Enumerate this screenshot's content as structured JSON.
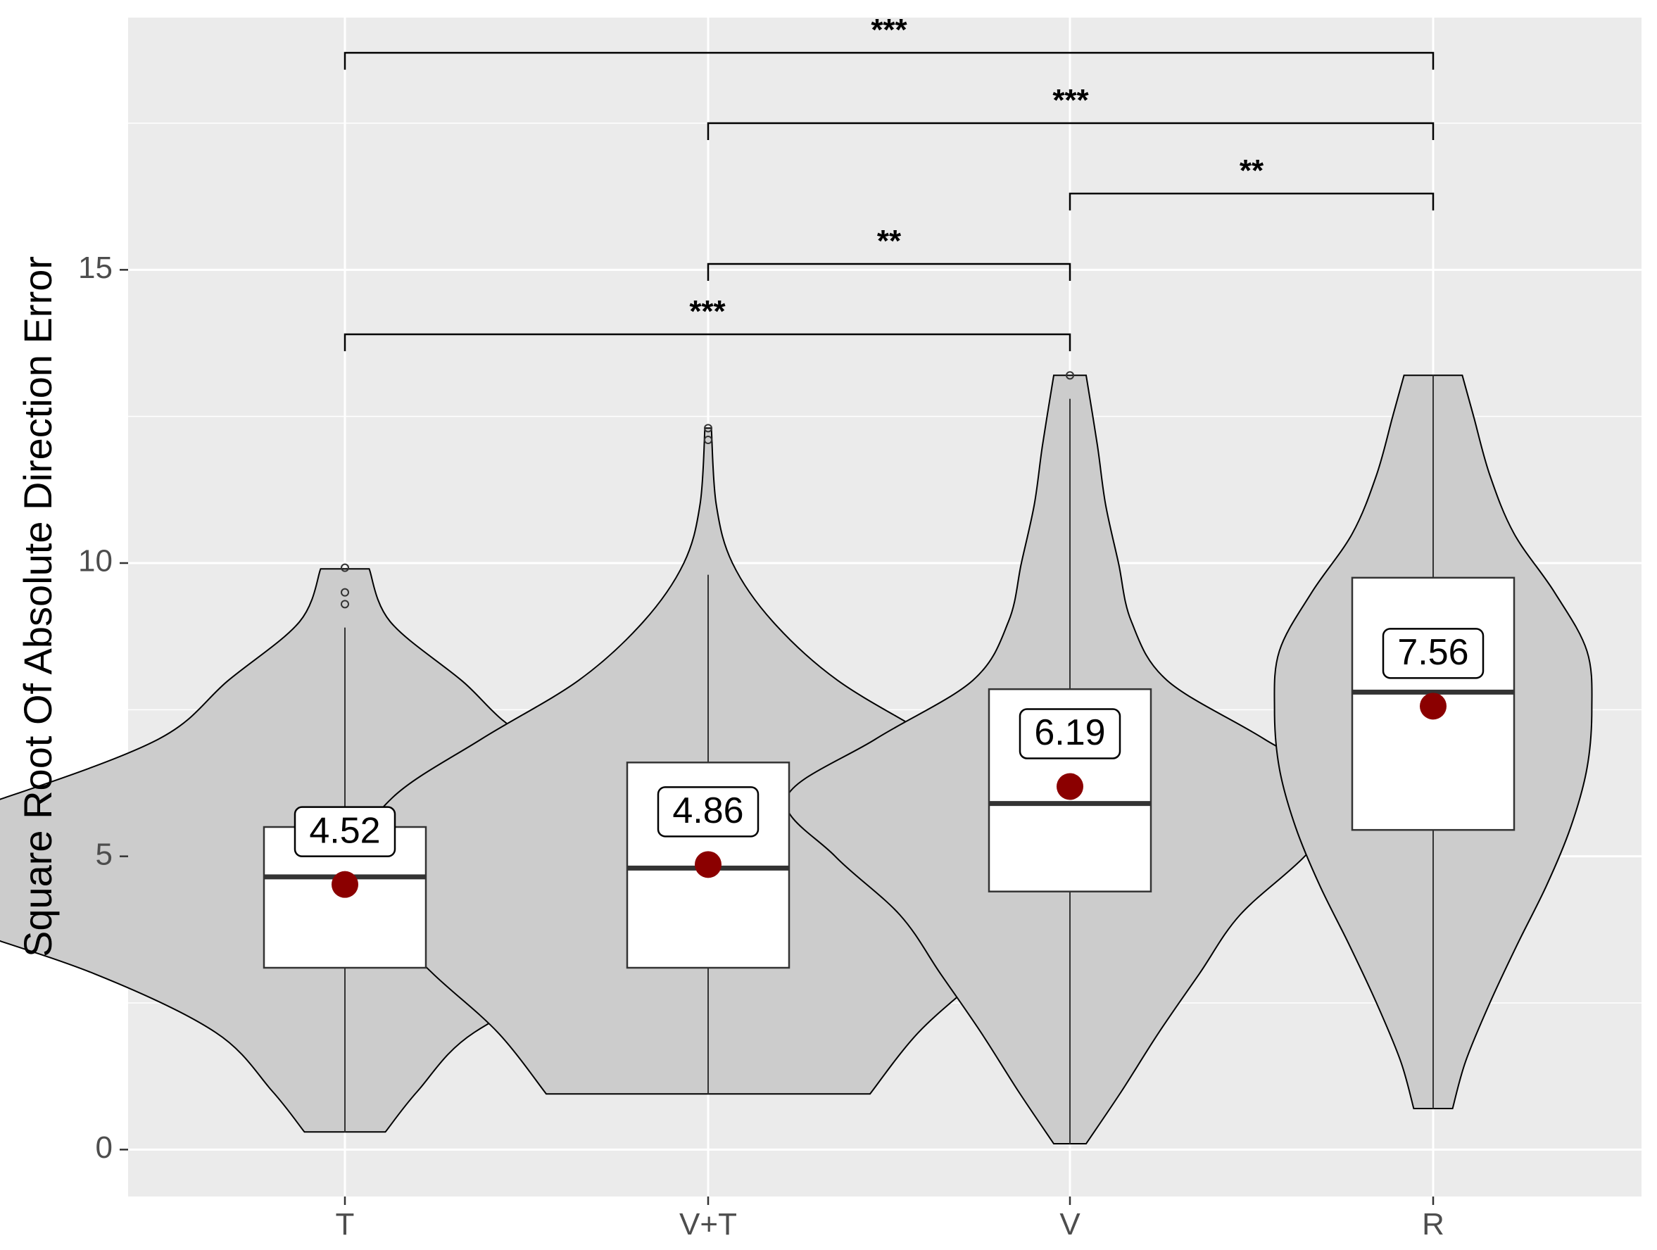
{
  "chart_data": {
    "type": "violin",
    "title": "",
    "xlabel": "",
    "ylabel": "Square Root Of Absolute Direction Error",
    "ylim": [
      -0.8,
      19.3
    ],
    "yticks": [
      0,
      5,
      10,
      15
    ],
    "grid": true,
    "legend": "none",
    "categories": [
      "T",
      "V+T",
      "V",
      "R"
    ],
    "groups": [
      {
        "category": "T",
        "violin": [
          [
            0.3,
            0.25
          ],
          [
            1.0,
            0.45
          ],
          [
            2.0,
            0.8
          ],
          [
            3.0,
            1.55
          ],
          [
            4.0,
            2.6
          ],
          [
            4.85,
            3.3
          ],
          [
            5.5,
            2.75
          ],
          [
            6.0,
            2.1
          ],
          [
            7.0,
            1.15
          ],
          [
            8.0,
            0.72
          ],
          [
            9.0,
            0.28
          ],
          [
            9.9,
            0.15
          ]
        ],
        "box": {
          "q1": 3.1,
          "median": 4.65,
          "q3": 5.5,
          "whisker_low": 0.3,
          "whisker_high": 8.9
        },
        "outliers": [
          9.3,
          9.5,
          9.92
        ],
        "mean": 4.52,
        "mean_label": "4.52"
      },
      {
        "category": "V+T",
        "violin": [
          [
            0.95,
            1.0
          ],
          [
            2.0,
            1.3
          ],
          [
            3.0,
            1.7
          ],
          [
            4.0,
            2.05
          ],
          [
            4.9,
            2.2
          ],
          [
            6.0,
            1.95
          ],
          [
            7.0,
            1.4
          ],
          [
            8.0,
            0.8
          ],
          [
            9.0,
            0.4
          ],
          [
            10.0,
            0.15
          ],
          [
            11.0,
            0.05
          ],
          [
            12.3,
            0.02
          ]
        ],
        "box": {
          "q1": 3.1,
          "median": 4.8,
          "q3": 6.6,
          "whisker_low": 0.95,
          "whisker_high": 9.8
        },
        "outliers": [
          12.1,
          12.3
        ],
        "mean": 4.86,
        "mean_label": "4.86"
      },
      {
        "category": "V",
        "violin": [
          [
            0.1,
            0.1
          ],
          [
            1.0,
            0.32
          ],
          [
            2.0,
            0.55
          ],
          [
            3.0,
            0.8
          ],
          [
            4.0,
            1.05
          ],
          [
            5.0,
            1.45
          ],
          [
            6.0,
            1.75
          ],
          [
            7.0,
            1.2
          ],
          [
            8.0,
            0.6
          ],
          [
            9.0,
            0.38
          ],
          [
            10.0,
            0.3
          ],
          [
            11.0,
            0.22
          ],
          [
            12.0,
            0.17
          ],
          [
            13.2,
            0.1
          ]
        ],
        "box": {
          "q1": 4.4,
          "median": 5.9,
          "q3": 7.85,
          "whisker_low": 0.1,
          "whisker_high": 12.8
        },
        "outliers": [
          13.2
        ],
        "mean": 6.19,
        "mean_label": "6.19"
      },
      {
        "category": "R",
        "violin": [
          [
            0.7,
            0.12
          ],
          [
            1.5,
            0.2
          ],
          [
            2.5,
            0.35
          ],
          [
            3.5,
            0.52
          ],
          [
            4.5,
            0.7
          ],
          [
            5.5,
            0.85
          ],
          [
            6.5,
            0.95
          ],
          [
            7.5,
            0.98
          ],
          [
            8.5,
            0.95
          ],
          [
            9.5,
            0.75
          ],
          [
            10.5,
            0.5
          ],
          [
            11.5,
            0.35
          ],
          [
            12.5,
            0.25
          ],
          [
            13.2,
            0.18
          ]
        ],
        "box": {
          "q1": 5.45,
          "median": 7.8,
          "q3": 9.75,
          "whisker_low": 0.7,
          "whisker_high": 13.2
        },
        "outliers": [],
        "mean": 7.56,
        "mean_label": "7.56"
      }
    ],
    "significance": [
      {
        "from": "T",
        "to": "V",
        "y": 13.9,
        "label": "***"
      },
      {
        "from": "V+T",
        "to": "V",
        "y": 15.1,
        "label": "**"
      },
      {
        "from": "V",
        "to": "R",
        "y": 16.3,
        "label": "**"
      },
      {
        "from": "V+T",
        "to": "R",
        "y": 17.5,
        "label": "***"
      },
      {
        "from": "T",
        "to": "R",
        "y": 18.7,
        "label": "***"
      }
    ],
    "colors": {
      "panel": "#ebebeb",
      "grid": "#ffffff",
      "violin_fill": "#cccccc",
      "violin_stroke": "#000000",
      "box_fill": "#ffffff",
      "median": "#333333",
      "mean_point": "#8b0000"
    }
  }
}
